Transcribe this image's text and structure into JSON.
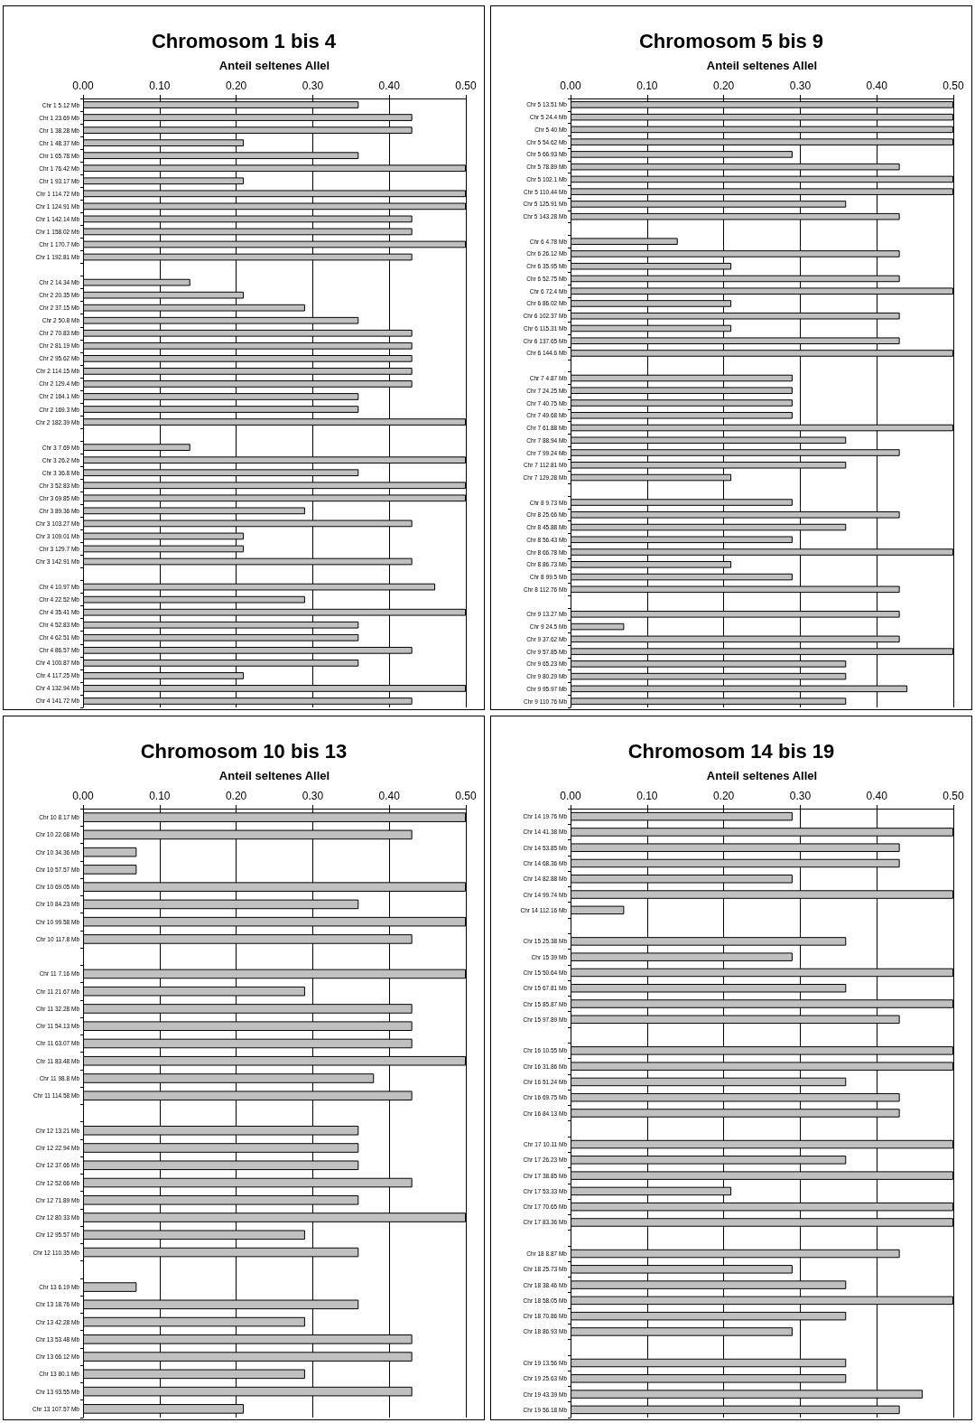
{
  "chart_data": [
    {
      "type": "bar",
      "orientation": "horizontal",
      "title": "Chromosom 1 bis 4",
      "xlabel": "Anteil seltenes Allel",
      "color": "#c0c0c0",
      "grid": "x",
      "xlim": [
        0,
        0.5
      ],
      "xticks": [
        {
          "value": 0,
          "label": "0.00"
        },
        {
          "value": 0.1,
          "label": "0.10"
        },
        {
          "value": 0.2,
          "label": "0.20"
        },
        {
          "value": 0.3,
          "label": "0.30"
        },
        {
          "value": 0.4,
          "label": "0.40"
        },
        {
          "value": 0.5,
          "label": "0.50"
        }
      ],
      "categories": [
        "Chr 1 5.12 Mb",
        "Chr 1 23.69 Mb",
        "Chr 1 38.28 Mb",
        "Chr 1 48.37 Mb",
        "Chr 1 65.78 Mb",
        "Chr 1 76.42 Mb",
        "Chr 1 93.17 Mb",
        "Chr 1 114.72 Mb",
        "Chr 1 124.91 Mb",
        "Chr 1 142.14 Mb",
        "Chr 1 158.02 Mb",
        "Chr 1 170.7 Mb",
        "Chr 1 192.81 Mb",
        null,
        "Chr 2 14.34 Mb",
        "Chr 2 20.35 Mb",
        "Chr 2 37.15 Mb",
        "Chr 2 50.8 Mb",
        "Chr 2 70.83 Mb",
        "Chr 2 81.19 Mb",
        "Chr 2 95.62 Mb",
        "Chr 2 114.15 Mb",
        "Chr 2 129.4 Mb",
        "Chr 2 164.1 Mb",
        "Chr 2 169.3 Mb",
        "Chr 2 182.39 Mb",
        null,
        "Chr 3 7.69 Mb",
        "Chr 3 26.2 Mb",
        "Chr 3 36.8 Mb",
        "Chr 3 52.83 Mb",
        "Chr 3 69.85 Mb",
        "Chr 3 89.36 Mb",
        "Chr 3 103.27 Mb",
        "Chr 3 109.01 Mb",
        "Chr 3 129.7 Mb",
        "Chr 3 142.91 Mb",
        null,
        "Chr 4 10.97 Mb",
        "Chr 4 22.52 Mb",
        "Chr 4 35.41 Mb",
        "Chr 4 52.83 Mb",
        "Chr 4 62.51 Mb",
        "Chr 4 86.57 Mb",
        "Chr 4 100.87 Mb",
        "Chr 4 117.25 Mb",
        "Chr 4 132.94 Mb",
        "Chr 4 141.72 Mb"
      ],
      "values": [
        0.36,
        0.43,
        0.43,
        0.21,
        0.36,
        0.5,
        0.21,
        0.5,
        0.5,
        0.43,
        0.43,
        0.5,
        0.43,
        null,
        0.14,
        0.21,
        0.29,
        0.36,
        0.43,
        0.43,
        0.43,
        0.43,
        0.43,
        0.36,
        0.36,
        0.5,
        null,
        0.14,
        0.5,
        0.36,
        0.5,
        0.5,
        0.29,
        0.43,
        0.21,
        0.21,
        0.43,
        null,
        0.46,
        0.29,
        0.5,
        0.36,
        0.36,
        0.43,
        0.36,
        0.21,
        0.5,
        0.43
      ]
    },
    {
      "type": "bar",
      "orientation": "horizontal",
      "title": "Chromosom 5 bis 9",
      "xlabel": "Anteil seltenes Allel",
      "color": "#c0c0c0",
      "grid": "x",
      "xlim": [
        0,
        0.5
      ],
      "xticks": [
        {
          "value": 0,
          "label": "0.00"
        },
        {
          "value": 0.1,
          "label": "0.10"
        },
        {
          "value": 0.2,
          "label": "0.20"
        },
        {
          "value": 0.3,
          "label": "0.30"
        },
        {
          "value": 0.4,
          "label": "0.40"
        },
        {
          "value": 0.5,
          "label": "0.50"
        }
      ],
      "categories": [
        "Chr 5 13.51 Mb",
        "Chr 5 24.4 Mb",
        "Chr 5 40 Mb",
        "Chr 5 54.62 Mb",
        "Chr 5 66.93 Mb",
        "Chr 5 78.89 Mb",
        "Chr 5 102.1 Mb",
        "Chr 5 110.44 Mb",
        "Chr 5 125.91 Mb",
        "Chr 5 143.28 Mb",
        null,
        "Chr 6 4.78 Mb",
        "Chr 6 26.12 Mb",
        "Chr 6 35.95 Mb",
        "Chr 6 52.75 Mb",
        "Chr 6 72.4 Mb",
        "Chr 6 86.02 Mb",
        "Chr 6 102.37 Mb",
        "Chr 6 115.31 Mb",
        "Chr 6 137.65 Mb",
        "Chr 6 144.6 Mb",
        null,
        "Chr 7 4.87 Mb",
        "Chr 7 24.25 Mb",
        "Chr 7 40.75 Mb",
        "Chr 7 49.68 Mb",
        "Chr 7 61.88 Mb",
        "Chr 7 88.94 Mb",
        "Chr 7 99.24 Mb",
        "Chr 7 112.81 Mb",
        "Chr 7 129.28 Mb",
        null,
        "Chr 8 9.73 Mb",
        "Chr 8 25.66 Mb",
        "Chr 8 45.88 Mb",
        "Chr 8 56.43 Mb",
        "Chr 8 66.78 Mb",
        "Chr 8 86.73 Mb",
        "Chr 8 99.5 Mb",
        "Chr 8 112.76 Mb",
        null,
        "Chr 9 13.27 Mb",
        "Chr 9 24.5 Mb",
        "Chr 9 37.62 Mb",
        "Chr 9 57.85 Mb",
        "Chr 9 65.23 Mb",
        "Chr 9 80.29 Mb",
        "Chr 9 95.97 Mb",
        "Chr 9 110.76 Mb"
      ],
      "values": [
        0.5,
        0.5,
        0.5,
        0.5,
        0.29,
        0.43,
        0.5,
        0.5,
        0.36,
        0.43,
        null,
        0.14,
        0.43,
        0.21,
        0.43,
        0.5,
        0.21,
        0.43,
        0.21,
        0.43,
        0.5,
        null,
        0.29,
        0.29,
        0.29,
        0.29,
        0.5,
        0.36,
        0.43,
        0.36,
        0.21,
        null,
        0.29,
        0.43,
        0.36,
        0.29,
        0.5,
        0.21,
        0.29,
        0.43,
        null,
        0.43,
        0.07,
        0.43,
        0.5,
        0.36,
        0.36,
        0.44,
        0.36
      ]
    },
    {
      "type": "bar",
      "orientation": "horizontal",
      "title": "Chromosom 10 bis 13",
      "xlabel": "Anteil seltenes Allel",
      "color": "#c0c0c0",
      "grid": "x",
      "xlim": [
        0,
        0.5
      ],
      "xticks": [
        {
          "value": 0,
          "label": "0.00"
        },
        {
          "value": 0.1,
          "label": "0.10"
        },
        {
          "value": 0.2,
          "label": "0.20"
        },
        {
          "value": 0.3,
          "label": "0.30"
        },
        {
          "value": 0.4,
          "label": "0.40"
        },
        {
          "value": 0.5,
          "label": "0.50"
        }
      ],
      "categories": [
        "Chr 10 8.17 Mb",
        "Chr 10 22.68 Mb",
        "Chr 10 34.36 Mb",
        "Chr 10 57.57 Mb",
        "Chr 10 69.05 Mb",
        "Chr 10 84.23 Mb",
        "Chr 10 99.58 Mb",
        "Chr 10 117.8 Mb",
        null,
        "Chr 11 7.16 Mb",
        "Chr 11 21.67 Mb",
        "Chr 11 32.28 Mb",
        "Chr 11 54.13 Mb",
        "Chr 11 63.07 Mb",
        "Chr 11 83.48 Mb",
        "Chr 11 98.8 Mb",
        "Chr 11 114.58 Mb",
        null,
        "Chr 12 13.21 Mb",
        "Chr 12 22.94 Mb",
        "Chr 12 37.66 Mb",
        "Chr 12 52.66 Mb",
        "Chr 12 71.89 Mb",
        "Chr 12 80.33 Mb",
        "Chr 12 95.57 Mb",
        "Chr 12 110.35 Mb",
        null,
        "Chr 13 6.19 Mb",
        "Chr 13 18.76 Mb",
        "Chr 13 42.28 Mb",
        "Chr 13 53.48 Mb",
        "Chr 13 66.12 Mb",
        "Chr 13 80.1 Mb",
        "Chr 13 93.55 Mb",
        "Chr 13 107.57 Mb"
      ],
      "values": [
        0.5,
        0.43,
        0.07,
        0.07,
        0.5,
        0.36,
        0.5,
        0.43,
        null,
        0.5,
        0.29,
        0.43,
        0.43,
        0.43,
        0.5,
        0.38,
        0.43,
        null,
        0.36,
        0.36,
        0.36,
        0.43,
        0.36,
        0.5,
        0.29,
        0.36,
        null,
        0.07,
        0.36,
        0.29,
        0.43,
        0.43,
        0.29,
        0.43,
        0.21
      ]
    },
    {
      "type": "bar",
      "orientation": "horizontal",
      "title": "Chromosom 14 bis 19",
      "xlabel": "Anteil seltenes Allel",
      "color": "#c0c0c0",
      "grid": "x",
      "xlim": [
        0,
        0.5
      ],
      "xticks": [
        {
          "value": 0,
          "label": "0.00"
        },
        {
          "value": 0.1,
          "label": "0.10"
        },
        {
          "value": 0.2,
          "label": "0.20"
        },
        {
          "value": 0.3,
          "label": "0.30"
        },
        {
          "value": 0.4,
          "label": "0.40"
        },
        {
          "value": 0.5,
          "label": "0.50"
        }
      ],
      "categories": [
        "Chr 14 19.76 Mb",
        "Chr 14 41.38 Mb",
        "Chr 14 53.85 Mb",
        "Chr 14 68.36 Mb",
        "Chr 14 82.88 Mb",
        "Chr 14 99.74 Mb",
        "Chr 14 112.16 Mb",
        null,
        "Chr 15 25.38 Mb",
        "Chr 15 39 Mb",
        "Chr 15 50.64 Mb",
        "Chr 15 67.81 Mb",
        "Chr 15 85.87 Mb",
        "Chr 15 97.89 Mb",
        null,
        "Chr 16 10.55 Mb",
        "Chr 16 31.86 Mb",
        "Chr 16 51.24 Mb",
        "Chr 16 69.75 Mb",
        "Chr 16 84.13 Mb",
        null,
        "Chr 17 10.11 Mb",
        "Chr 17 26.23 Mb",
        "Chr 17 38.85 Mb",
        "Chr 17 53.33 Mb",
        "Chr 17 70.65 Mb",
        "Chr 17 83.36 Mb",
        null,
        "Chr 18 8.87 Mb",
        "Chr 18 25.73 Mb",
        "Chr 18 38.46 Mb",
        "Chr 18 58.05 Mb",
        "Chr 18 70.86 Mb",
        "Chr 18 86.93 Mb",
        null,
        "Chr 19 13.56 Mb",
        "Chr 19 25.63 Mb",
        "Chr 19 43.39 Mb",
        "Chr 19 56.18 Mb"
      ],
      "values": [
        0.29,
        0.5,
        0.43,
        0.43,
        0.29,
        0.5,
        0.07,
        null,
        0.36,
        0.29,
        0.5,
        0.36,
        0.5,
        0.43,
        null,
        0.5,
        0.5,
        0.36,
        0.43,
        0.43,
        null,
        0.5,
        0.36,
        0.5,
        0.21,
        0.5,
        0.5,
        null,
        0.43,
        0.29,
        0.36,
        0.5,
        0.36,
        0.29,
        null,
        0.36,
        0.36,
        0.46,
        0.43
      ]
    }
  ]
}
